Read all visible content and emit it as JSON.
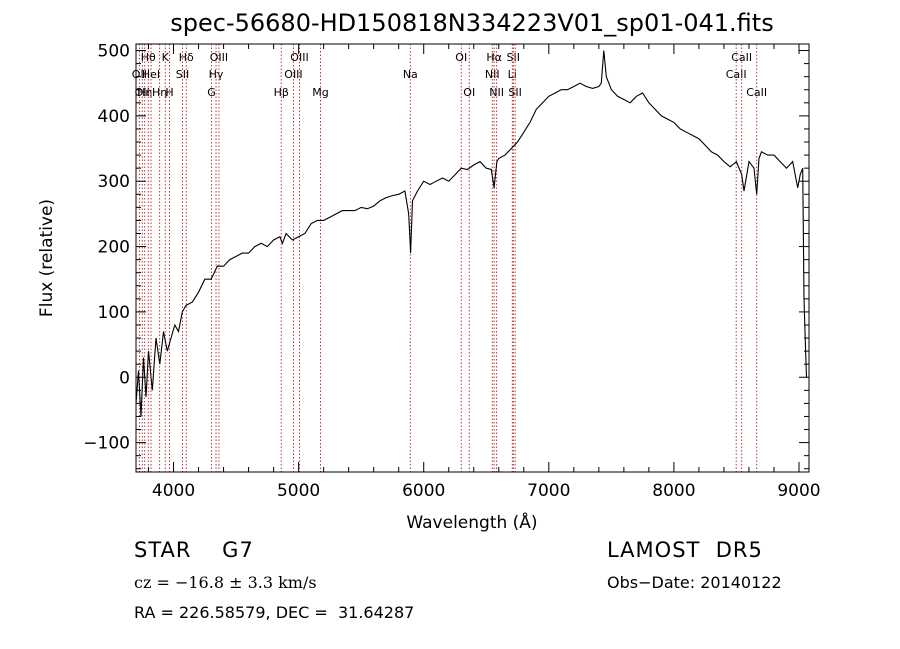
{
  "chart_data": {
    "type": "line",
    "title": "spec-56680-HD150818N334223V01_sp01-041.fits",
    "xlabel": "Wavelength (Å)",
    "ylabel": "Flux (relative)",
    "xlim": [
      3700,
      9080
    ],
    "ylim": [
      -145,
      510
    ],
    "xticks": [
      4000,
      5000,
      6000,
      7000,
      8000,
      9000
    ],
    "yticks": [
      -100,
      0,
      100,
      200,
      300,
      400,
      500
    ],
    "grid": false,
    "series": [
      {
        "color": "#000000",
        "x": [
          3700,
          3720,
          3740,
          3760,
          3780,
          3800,
          3830,
          3860,
          3890,
          3920,
          3950,
          3980,
          4010,
          4040,
          4070,
          4100,
          4150,
          4200,
          4250,
          4300,
          4350,
          4400,
          4450,
          4500,
          4550,
          4600,
          4650,
          4700,
          4750,
          4800,
          4850,
          4870,
          4900,
          4950,
          5000,
          5050,
          5100,
          5150,
          5200,
          5250,
          5300,
          5350,
          5400,
          5450,
          5500,
          5550,
          5600,
          5650,
          5700,
          5750,
          5800,
          5850,
          5880,
          5895,
          5910,
          5950,
          6000,
          6050,
          6100,
          6150,
          6200,
          6250,
          6300,
          6350,
          6400,
          6450,
          6500,
          6540,
          6563,
          6585,
          6600,
          6650,
          6700,
          6750,
          6800,
          6850,
          6900,
          6950,
          7000,
          7050,
          7100,
          7150,
          7200,
          7250,
          7300,
          7350,
          7400,
          7420,
          7440,
          7460,
          7500,
          7550,
          7600,
          7650,
          7700,
          7750,
          7800,
          7850,
          7900,
          7950,
          8000,
          8050,
          8100,
          8150,
          8200,
          8250,
          8300,
          8350,
          8400,
          8450,
          8500,
          8542,
          8560,
          8600,
          8640,
          8662,
          8680,
          8700,
          8750,
          8800,
          8850,
          8900,
          8950,
          8990,
          9010,
          9030,
          9040,
          9050,
          9060
        ],
        "values": [
          -40,
          10,
          -60,
          30,
          -30,
          40,
          -20,
          60,
          20,
          70,
          40,
          60,
          80,
          70,
          100,
          110,
          115,
          130,
          150,
          150,
          170,
          170,
          180,
          185,
          190,
          190,
          200,
          205,
          200,
          210,
          215,
          205,
          220,
          210,
          215,
          220,
          235,
          240,
          240,
          245,
          250,
          255,
          255,
          255,
          260,
          258,
          262,
          270,
          275,
          278,
          280,
          285,
          250,
          190,
          270,
          285,
          300,
          295,
          300,
          305,
          300,
          310,
          320,
          318,
          325,
          330,
          320,
          318,
          290,
          330,
          335,
          340,
          350,
          360,
          375,
          390,
          410,
          420,
          430,
          435,
          440,
          440,
          445,
          450,
          445,
          442,
          445,
          450,
          500,
          460,
          440,
          430,
          425,
          420,
          430,
          435,
          420,
          410,
          400,
          395,
          390,
          380,
          375,
          370,
          365,
          355,
          345,
          340,
          330,
          322,
          330,
          310,
          285,
          330,
          320,
          280,
          335,
          345,
          340,
          340,
          330,
          320,
          330,
          290,
          310,
          320,
          120,
          60,
          0
        ]
      }
    ],
    "lines": [
      {
        "wl": 3727,
        "name": "OII",
        "row": 1
      },
      {
        "wl": 3750,
        "name": "OII",
        "row": 2
      },
      {
        "wl": 3770,
        "name": "Hη",
        "row": 2
      },
      {
        "wl": 3798,
        "name": "Hθ",
        "row": 0
      },
      {
        "wl": 3820,
        "name": "HeI",
        "row": 1
      },
      {
        "wl": 3889,
        "name": "Hη",
        "row": 2
      },
      {
        "wl": 3934,
        "name": "K",
        "row": 0
      },
      {
        "wl": 3968,
        "name": "H",
        "row": 2
      },
      {
        "wl": 4072,
        "name": "SII",
        "row": 1
      },
      {
        "wl": 4102,
        "name": "Hδ",
        "row": 0
      },
      {
        "wl": 4304,
        "name": "G",
        "row": 2
      },
      {
        "wl": 4340,
        "name": "Hγ",
        "row": 1
      },
      {
        "wl": 4363,
        "name": "OIII",
        "row": 0
      },
      {
        "wl": 4861,
        "name": "Hβ",
        "row": 2
      },
      {
        "wl": 4959,
        "name": "OIII",
        "row": 1
      },
      {
        "wl": 5007,
        "name": "OIII",
        "row": 0
      },
      {
        "wl": 5175,
        "name": "Mg",
        "row": 2
      },
      {
        "wl": 5893,
        "name": "Na",
        "row": 1
      },
      {
        "wl": 6300,
        "name": "OI",
        "row": 0
      },
      {
        "wl": 6364,
        "name": "OI",
        "row": 2
      },
      {
        "wl": 6548,
        "name": "NII",
        "row": 1
      },
      {
        "wl": 6563,
        "name": "Hα",
        "row": 0
      },
      {
        "wl": 6583,
        "name": "NII",
        "row": 2
      },
      {
        "wl": 6708,
        "name": "Li",
        "row": 1
      },
      {
        "wl": 6716,
        "name": "SII",
        "row": 0
      },
      {
        "wl": 6731,
        "name": "SII",
        "row": 2
      },
      {
        "wl": 8498,
        "name": "CaII",
        "row": 1
      },
      {
        "wl": 8542,
        "name": "CaII",
        "row": 0
      },
      {
        "wl": 8662,
        "name": "CaII",
        "row": 2
      }
    ]
  },
  "info": {
    "object_class": "STAR    G7",
    "survey": "LAMOST  DR5",
    "redshift": "cz = −16.8 ± 3.3 km/s",
    "obs_date": "Obs−Date: 20140122",
    "coords": "RA = 226.58579, DEC =  31.64287"
  }
}
